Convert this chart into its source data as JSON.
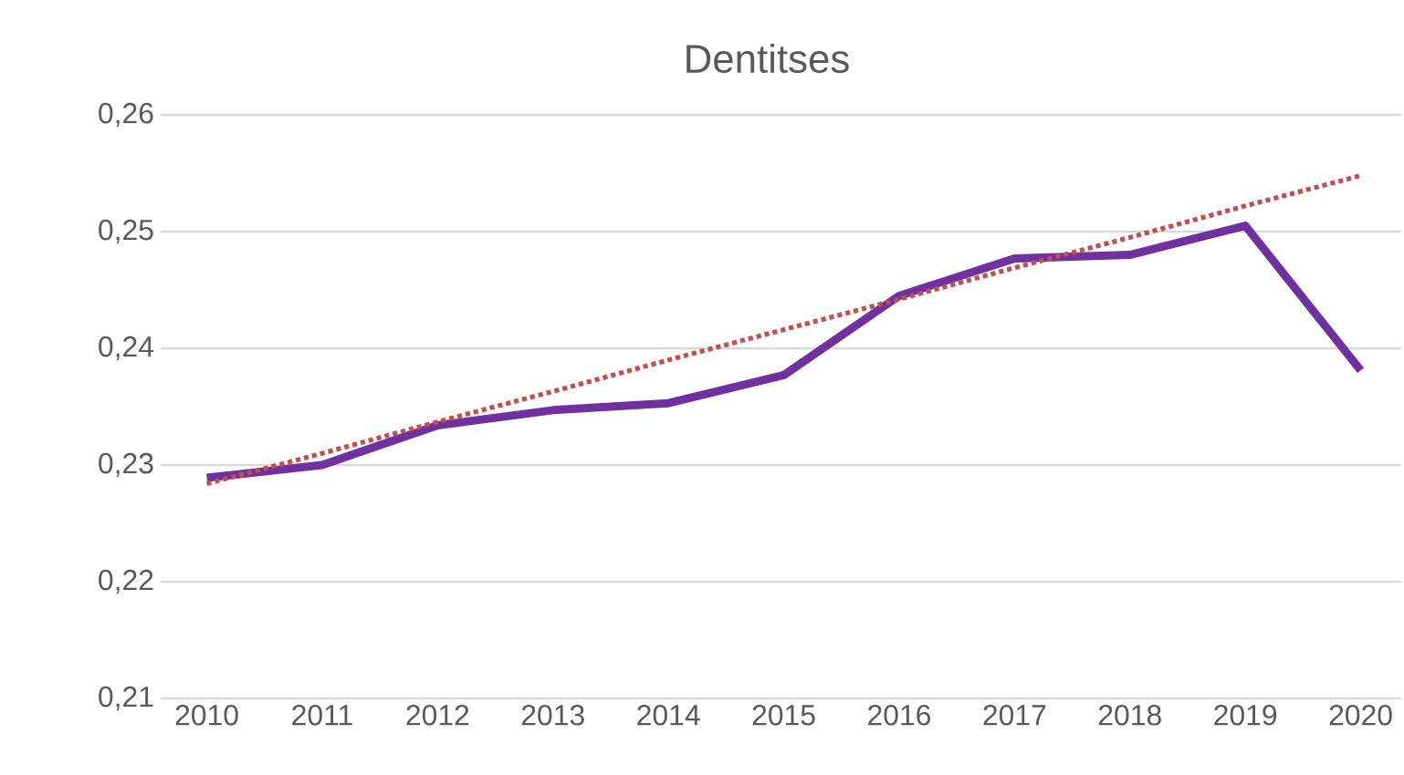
{
  "chart_data": {
    "type": "line",
    "title": "Dentitses",
    "categories": [
      "2010",
      "2011",
      "2012",
      "2013",
      "2014",
      "2015",
      "2016",
      "2017",
      "2018",
      "2019",
      "2020"
    ],
    "series": [
      {
        "color": "#7030a0",
        "line_style": "solid",
        "values": [
          0.2289,
          0.23,
          0.2334,
          0.2347,
          0.2353,
          0.2377,
          0.2445,
          0.2477,
          0.248,
          0.2505,
          0.2381
        ]
      },
      {
        "color": "#c0504d",
        "line_style": "dotted",
        "values": [
          0.2284,
          0.231,
          0.2337,
          0.2363,
          0.239,
          0.2416,
          0.2442,
          0.2469,
          0.2495,
          0.2522,
          0.2548
        ]
      }
    ],
    "ylim": [
      0.21,
      0.26
    ],
    "yticks": [
      {
        "value": 0.21,
        "label": "0,21"
      },
      {
        "value": 0.22,
        "label": "0,22"
      },
      {
        "value": 0.23,
        "label": "0,23"
      },
      {
        "value": 0.24,
        "label": "0,24"
      },
      {
        "value": 0.25,
        "label": "0,25"
      },
      {
        "value": 0.26,
        "label": "0,26"
      }
    ],
    "grid": "y",
    "legend": false,
    "marker": "none"
  }
}
